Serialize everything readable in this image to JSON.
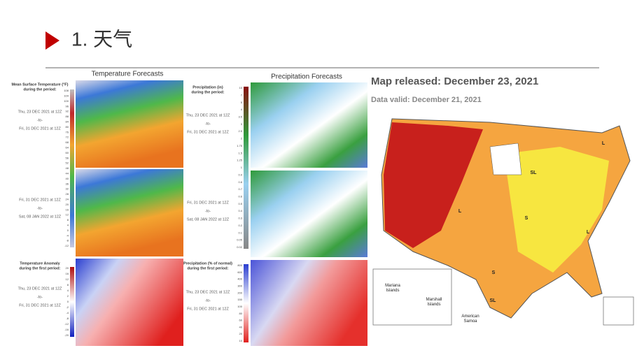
{
  "title": "1. 天气",
  "temperature": {
    "heading": "Temperature Forecasts",
    "scale_title": [
      "Mean Surface Temperature (°F)",
      "during the period:"
    ],
    "periods": [
      [
        "Thu, 23 DEC 2021 at 12Z",
        "-to-",
        "Fri, 31 DEC 2021 at 12Z"
      ],
      [
        "Fri, 31 DEC 2021 at 12Z",
        "-to-",
        "Sat, 08 JAN 2022 at 12Z"
      ],
      [
        "Thu, 23 DEC 2021 at 12Z",
        "-to-",
        "Fri, 31 DEC 2021 at 12Z"
      ]
    ],
    "anomaly_title": [
      "Temperature Anomaly",
      "during the first period:"
    ],
    "scale": [
      108,
      104,
      100,
      96,
      92,
      88,
      84,
      80,
      76,
      72,
      68,
      64,
      60,
      56,
      52,
      48,
      44,
      40,
      36,
      32,
      28,
      24,
      20,
      16,
      12,
      8,
      4,
      0,
      -4,
      -8,
      -12
    ],
    "anomaly_scale": [
      20,
      16,
      12,
      8,
      4,
      2,
      0,
      -2,
      -4,
      -8,
      -12,
      -16,
      -20
    ]
  },
  "precipitation": {
    "heading": "Precipitation Forecasts",
    "scale_title": [
      "Precipitation (in)",
      "during the period:"
    ],
    "periods": [
      [
        "Thu, 23 DEC 2021 at 12Z",
        "-to-",
        "Fri, 31 DEC 2021 at 12Z"
      ],
      [
        "Fri, 31 DEC 2021 at 12Z",
        "-to-",
        "Sat, 08 JAN 2022 at 12Z"
      ],
      [
        "Thu, 23 DEC 2021 at 12Z",
        "-to-",
        "Fri, 31 DEC 2021 at 12Z"
      ]
    ],
    "normal_title": [
      "Precipitation (% of normal)",
      "during the first period:"
    ],
    "scale": [
      10,
      7,
      5,
      4,
      3.5,
      3,
      2.5,
      2,
      1.75,
      1.5,
      1.25,
      1,
      0.9,
      0.8,
      0.7,
      0.6,
      0.5,
      0.4,
      0.3,
      0.2,
      0.1,
      0.05,
      0.02
    ],
    "normal_scale": [
      800,
      600,
      400,
      300,
      200,
      150,
      100,
      80,
      60,
      40,
      20,
      10
    ]
  },
  "drought": {
    "released": "Map released: December 23, 2021",
    "valid": "Data valid: December 21, 2021",
    "labels": [
      "SL",
      "L",
      "S",
      "L",
      "S",
      "SL",
      "L"
    ],
    "inset": [
      "Mariana Islands",
      "Marshall Islands",
      "American Samoa"
    ]
  }
}
